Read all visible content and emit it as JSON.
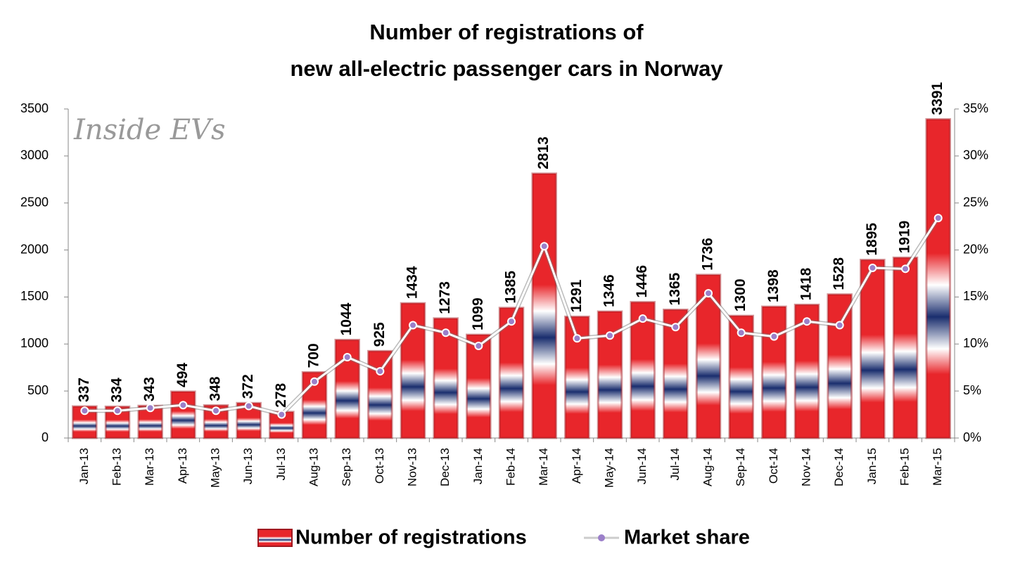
{
  "chart_data": {
    "type": "bar-line",
    "title": [
      "Number of registrations of",
      "new all-electric passenger cars in Norway"
    ],
    "watermark": "Inside EVs",
    "categories": [
      "Jan-13",
      "Feb-13",
      "Mar-13",
      "Apr-13",
      "May-13",
      "Jun-13",
      "Jul-13",
      "Aug-13",
      "Sep-13",
      "Oct-13",
      "Nov-13",
      "Dec-13",
      "Jan-14",
      "Feb-14",
      "Mar-14",
      "Apr-14",
      "May-14",
      "Jun-14",
      "Jul-14",
      "Aug-14",
      "Sep-14",
      "Oct-14",
      "Nov-14",
      "Dec-14",
      "Jan-15",
      "Feb-15",
      "Mar-15"
    ],
    "series": [
      {
        "name": "Number of registrations",
        "type": "bar",
        "color": "#e8262b",
        "values": [
          337,
          334,
          343,
          494,
          348,
          372,
          278,
          700,
          1044,
          925,
          1434,
          1273,
          1099,
          1385,
          2813,
          1291,
          1346,
          1446,
          1365,
          1736,
          1300,
          1398,
          1418,
          1528,
          1895,
          1919,
          3391
        ]
      },
      {
        "name": "Market share",
        "type": "line",
        "axis": "y2",
        "color": "#ffffff",
        "marker_color": "#9b7fc9",
        "values": [
          2.9,
          2.9,
          3.2,
          3.5,
          2.9,
          3.4,
          2.5,
          6.0,
          8.6,
          7.1,
          12.0,
          11.2,
          9.8,
          12.4,
          20.4,
          10.6,
          10.9,
          12.7,
          11.8,
          15.4,
          11.2,
          10.8,
          12.4,
          12.0,
          18.1,
          18.0,
          23.4
        ]
      }
    ],
    "ylim": [
      0,
      3500
    ],
    "yticks": [
      0,
      500,
      1000,
      1500,
      2000,
      2500,
      3000,
      3500
    ],
    "y2lim": [
      0,
      35
    ],
    "y2ticks": [
      {
        "value": 0,
        "label": "0%"
      },
      {
        "value": 5,
        "label": "5%"
      },
      {
        "value": 10,
        "label": "10%"
      },
      {
        "value": 15,
        "label": "15%"
      },
      {
        "value": 20,
        "label": "20%"
      },
      {
        "value": 25,
        "label": "25%"
      },
      {
        "value": 30,
        "label": "30%"
      },
      {
        "value": 35,
        "label": "35%"
      }
    ],
    "grid": false,
    "legend": "bottom"
  }
}
